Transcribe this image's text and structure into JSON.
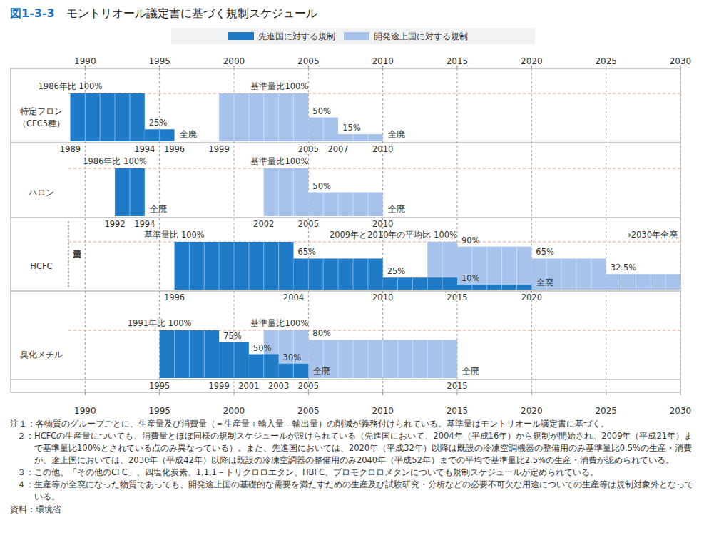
{
  "chart_data": {
    "type": "schedule",
    "title": "図1-3-3　モントリオール議定書に基づく規制スケジュール",
    "xlim": [
      1985,
      2030
    ],
    "xticks": [
      1990,
      1995,
      2000,
      2005,
      2010,
      2015,
      2020,
      2025,
      2030
    ],
    "ylim": [
      0,
      100
    ],
    "grid": true,
    "legend": "top",
    "series": [
      {
        "name": "先進国に対する規制",
        "color": "#1f7bc8"
      },
      {
        "name": "開発途上国に対する規制",
        "color": "#a7c3ec"
      }
    ],
    "rows": [
      {
        "label": [
          "特定フロン",
          "（CFC5種）"
        ],
        "series": [
          {
            "baseline_label": "1986年比 100%",
            "segments": [
              {
                "start": 1989,
                "end": 1994,
                "value": 100
              },
              {
                "start": 1994,
                "end": 1996,
                "value": 25,
                "value_label": "25%"
              }
            ],
            "end": {
              "year": 1996,
              "label": "全廃"
            }
          },
          {
            "baseline_label": "基準量比100%",
            "segments": [
              {
                "start": 1999,
                "end": 2005,
                "value": 100
              },
              {
                "start": 2005,
                "end": 2007,
                "value": 50,
                "value_label": "50%"
              },
              {
                "start": 2007,
                "end": 2010,
                "value": 15,
                "value_label": "15%"
              }
            ],
            "end": {
              "year": 2010,
              "label": "全廃"
            }
          }
        ],
        "year_labels": [
          1989,
          1994,
          1996,
          1999,
          2005,
          2007,
          2010
        ]
      },
      {
        "label": [
          "ハロン"
        ],
        "series": [
          {
            "baseline_label": "1986年比 100%",
            "segments": [
              {
                "start": 1992,
                "end": 1994,
                "value": 100
              }
            ],
            "end": {
              "year": 1994,
              "label": "全廃"
            }
          },
          {
            "baseline_label": "基準量比100%",
            "segments": [
              {
                "start": 2002,
                "end": 2005,
                "value": 100
              },
              {
                "start": 2005,
                "end": 2010,
                "value": 50,
                "value_label": "50%"
              }
            ],
            "end": {
              "year": 2010,
              "label": "全廃"
            }
          }
        ],
        "year_labels": [
          1992,
          1994,
          2002,
          2005,
          2010
        ]
      },
      {
        "label": [
          "HCFC"
        ],
        "sub_label": "消費量",
        "note": "→2030年全廃",
        "series": [
          {
            "baseline_label": "基準量比 100%",
            "segments": [
              {
                "start": 1996,
                "end": 2004,
                "value": 100
              },
              {
                "start": 2004,
                "end": 2010,
                "value": 65,
                "value_label": "65%"
              },
              {
                "start": 2010,
                "end": 2015,
                "value": 25,
                "value_label": "25%"
              },
              {
                "start": 2015,
                "end": 2020,
                "value": 10,
                "value_label": "10%"
              }
            ],
            "end": {
              "year": 2020,
              "label": "全廃"
            }
          },
          {
            "baseline_label": "2009年と2010年の平均比 100%",
            "segments": [
              {
                "start": 2013,
                "end": 2015,
                "value": 100
              },
              {
                "start": 2015,
                "end": 2020,
                "value": 90,
                "value_label": "90%"
              },
              {
                "start": 2020,
                "end": 2025,
                "value": 65,
                "value_label": "65%"
              },
              {
                "start": 2025,
                "end": 2030,
                "value": 32.5,
                "value_label": "32.5%"
              }
            ]
          }
        ],
        "year_labels": [
          1996,
          2004,
          2010,
          2015,
          2020
        ]
      },
      {
        "label": [
          "臭化メチル"
        ],
        "series": [
          {
            "baseline_label": "1991年比 100%",
            "segments": [
              {
                "start": 1995,
                "end": 1999,
                "value": 100
              },
              {
                "start": 1999,
                "end": 2001,
                "value": 75,
                "value_label": "75%"
              },
              {
                "start": 2001,
                "end": 2003,
                "value": 50,
                "value_label": "50%"
              },
              {
                "start": 2003,
                "end": 2005,
                "value": 30,
                "value_label": "30%"
              }
            ],
            "end": {
              "year": 2005,
              "label": "全廃"
            }
          },
          {
            "baseline_label": "基準量比100%",
            "segments": [
              {
                "start": 2002,
                "end": 2005,
                "value": 100
              },
              {
                "start": 2005,
                "end": 2015,
                "value": 80,
                "value_label": "80%"
              }
            ],
            "end": {
              "year": 2015,
              "label": "全廃"
            }
          }
        ],
        "year_labels": [
          1995,
          1999,
          2001,
          2003,
          2005,
          2015
        ]
      }
    ],
    "notes": [
      {
        "label": "注１：",
        "text": "各物質のグループごとに、生産量及び消費量（＝生産量＋輸入量－輸出量）の削減が義務付けられている。基準量はモントリオール議定書に基づく。"
      },
      {
        "label": "２：",
        "text": "HCFCの生産量についても、消費量とほぼ同様の規制スケジュールが設けられている（先進国において、2004年（平成16年）から規制が開始され、2009年（平成21年）まで基準量比100%とされている点のみ異なっている）。また、先進国においては、2020年（平成32年）以降は既設の冷凍空調機器の整備用のみ基準量比0.5%の生産・消費が、途上国においては、2030年（平成42年）以降は既設の冷凍空調器の整備用のみ2040年（平成52年）までの平均で基準量比2.5%の生産・消費が認められている。"
      },
      {
        "label": "３：",
        "text": "この他、「その他のCFC」、四塩化炭素、1,1,1－トリクロロエタン、HBFC、ブロモクロロメタンについても規制スケジュールが定められている。"
      },
      {
        "label": "４：",
        "text": "生産等が全廃になった物質であっても、開発途上国の基礎的な需要を満たすための生産及び試験研究・分析などの必要不可欠な用途についての生産等は規制対象外となっている。"
      }
    ],
    "source": "資料：環境省"
  }
}
